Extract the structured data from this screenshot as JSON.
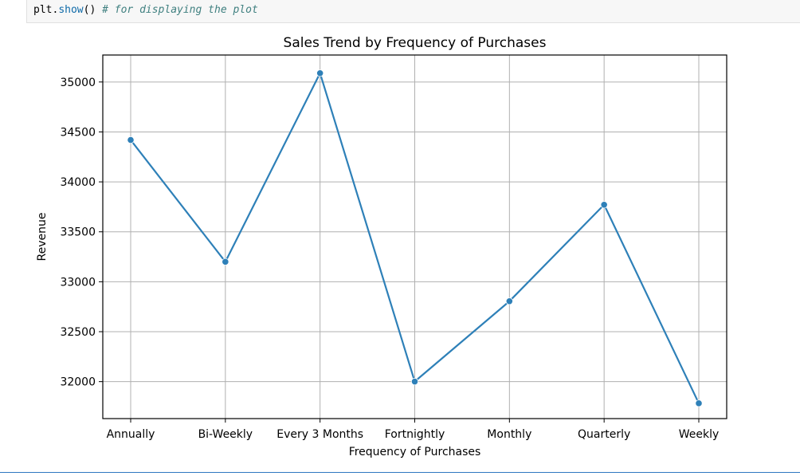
{
  "code": {
    "call_prefix": "plt.",
    "call_fn": "show",
    "call_parens": "()",
    "comment": "# for displaying the plot"
  },
  "chart_data": {
    "type": "line",
    "title": "Sales Trend by Frequency of Purchases",
    "xlabel": "Frequency of Purchases",
    "ylabel": "Revenue",
    "categories": [
      "Annually",
      "Bi-Weekly",
      "Every 3 Months",
      "Fortnightly",
      "Monthly",
      "Quarterly",
      "Weekly"
    ],
    "series": [
      {
        "values": [
          34419,
          33200,
          35088,
          32001,
          32805,
          33771,
          31783
        ],
        "color": "#2e80b8",
        "marker": "circle"
      }
    ],
    "yticks": [
      32000,
      32500,
      33000,
      33500,
      34000,
      34500,
      35000
    ],
    "ylim": [
      31630,
      35270
    ],
    "grid": true
  }
}
